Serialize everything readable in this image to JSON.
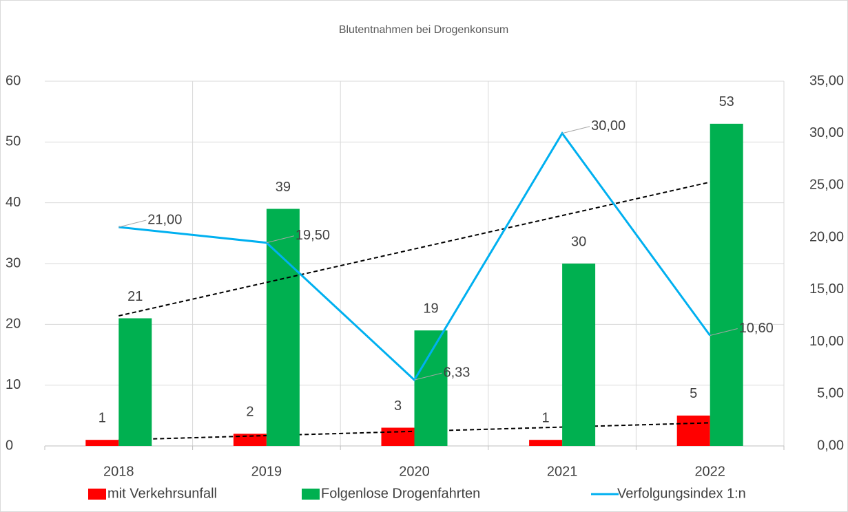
{
  "chart_data": {
    "type": "bar",
    "title": "Blutentnahmen bei Drogenkonsum",
    "categories": [
      "2018",
      "2019",
      "2020",
      "2021",
      "2022"
    ],
    "series": [
      {
        "name": "mit Verkehrsunfall",
        "color": "#ff0000",
        "values": [
          1,
          2,
          3,
          1,
          5
        ],
        "trendline": true
      },
      {
        "name": "Folgenlose Drogenfahrten",
        "color": "#00b050",
        "values": [
          21,
          39,
          19,
          30,
          53
        ],
        "trendline": true
      },
      {
        "name": "Verfolgungsindex 1:n",
        "type": "line",
        "axis": "y2",
        "color": "#00b0f0",
        "values": [
          21,
          19.5,
          6.33,
          30,
          10.6
        ],
        "value_labels": [
          "21,00",
          "19,50",
          "6,33",
          "30,00",
          "10,60"
        ]
      }
    ],
    "ylim": [
      0,
      60
    ],
    "yticks": [
      0,
      10,
      20,
      30,
      40,
      50,
      60
    ],
    "y2lim": [
      0,
      35
    ],
    "y2ticks": [
      {
        "value": 0,
        "label": "0,00"
      },
      {
        "value": 5,
        "label": "5,00"
      },
      {
        "value": 10,
        "label": "10,00"
      },
      {
        "value": 15,
        "label": "15,00"
      },
      {
        "value": 20,
        "label": "20,00"
      },
      {
        "value": 25,
        "label": "25,00"
      },
      {
        "value": 30,
        "label": "30,00"
      },
      {
        "value": 35,
        "label": "35,00"
      }
    ],
    "grid": true,
    "legend": "bottom"
  }
}
